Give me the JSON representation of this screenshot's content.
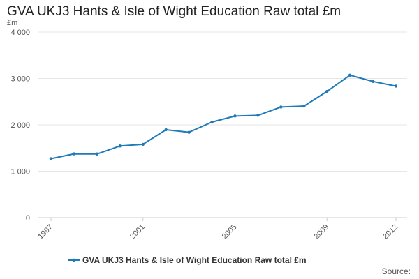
{
  "title": "GVA UKJ3 Hants & Isle of Wight Education Raw total £m",
  "source_label": "Source:",
  "colors": {
    "series": "#1f7ab8",
    "grid": "#e6e6e6",
    "axis_text": "#555555"
  },
  "chart_data": {
    "type": "line",
    "title": "GVA UKJ3 Hants & Isle of Wight Education Raw total £m",
    "ylabel": "£m",
    "xlabel": "",
    "ylim": [
      0,
      4000
    ],
    "yticks": [
      0,
      1000,
      2000,
      3000,
      4000
    ],
    "ytick_labels": [
      "0",
      "1 000",
      "2 000",
      "3 000",
      "4 000"
    ],
    "xlim": [
      1997,
      2012
    ],
    "xticks": [
      1997,
      2001,
      2005,
      2009,
      2012
    ],
    "xtick_labels": [
      "1997",
      "2001",
      "2005",
      "2009",
      "2012"
    ],
    "grid": true,
    "legend_position": "bottom",
    "series": [
      {
        "name": "GVA UKJ3 Hants & Isle of Wight Education Raw total £m",
        "color": "#1f7ab8",
        "x": [
          1997,
          1998,
          1999,
          2000,
          2001,
          2002,
          2003,
          2004,
          2005,
          2006,
          2007,
          2008,
          2009,
          2010,
          2011,
          2012
        ],
        "y": [
          1270,
          1375,
          1372,
          1545,
          1580,
          1895,
          1840,
          2060,
          2190,
          2205,
          2385,
          2405,
          2720,
          3070,
          2935,
          2835
        ]
      }
    ]
  }
}
